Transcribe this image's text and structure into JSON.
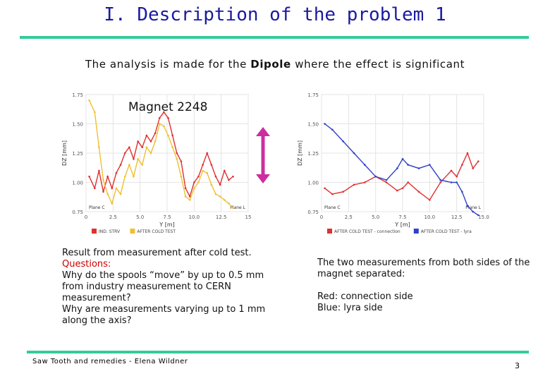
{
  "slide": {
    "title": "I. Description of the problem 1",
    "subtitle_before": "The analysis is made for the ",
    "subtitle_highlight": "Dipole",
    "subtitle_after": " where the effect is significant",
    "magnet_label": "Magnet 2248",
    "left_text": {
      "line1": "Result from measurement after cold test.",
      "line2": "Questions:",
      "line3": "Why do the spools “move” by up to 0.5 mm from industry measurement to CERN measurement?",
      "line4": "Why are measurements varying up to 1 mm along the axis?"
    },
    "right_text": {
      "para1": "The two measurements from both sides of the magnet separated:",
      "para2a": "Red: connection side",
      "para2b": "Blue: lyra side"
    },
    "footer": "Saw Tooth and remedies - Elena Wildner",
    "page_number": "3",
    "colors": {
      "title": "#1a1aa0",
      "rule": "#33cc99",
      "arrow": "#cc2ea0",
      "red_series": "#e03030",
      "yellow_series": "#f0c030",
      "blue_series": "#3040c8",
      "question": "#cc0000"
    }
  },
  "chart_data": [
    {
      "type": "line",
      "title": "",
      "xlabel": "Y [m]",
      "ylabel": "DZ [mm]",
      "xlim": [
        0,
        15
      ],
      "ylim": [
        0.75,
        1.75
      ],
      "x_ticks": [
        "0",
        "2.5",
        "5.0",
        "7.5",
        "10.0",
        "12.5",
        "15"
      ],
      "y_ticks": [
        "0.75",
        "1.00",
        "1.25",
        "1.50",
        "1.75"
      ],
      "corner_labels": [
        "Plane C",
        "Plane L"
      ],
      "legend_location": "bottom",
      "series": [
        {
          "name": "IND. STRV",
          "color": "#e03030",
          "x": [
            0.3,
            0.8,
            1.2,
            1.6,
            2.0,
            2.4,
            2.8,
            3.2,
            3.6,
            4.0,
            4.4,
            4.8,
            5.2,
            5.6,
            6.0,
            6.4,
            6.8,
            7.2,
            7.6,
            8.0,
            8.4,
            8.8,
            9.2,
            9.6,
            10.0,
            10.4,
            10.8,
            11.2,
            11.6,
            12.0,
            12.4,
            12.8,
            13.2,
            13.6
          ],
          "y": [
            1.05,
            0.95,
            1.1,
            0.92,
            1.05,
            0.95,
            1.08,
            1.15,
            1.25,
            1.3,
            1.2,
            1.35,
            1.3,
            1.4,
            1.35,
            1.42,
            1.55,
            1.6,
            1.55,
            1.4,
            1.25,
            1.18,
            0.95,
            0.88,
            1.0,
            1.05,
            1.15,
            1.25,
            1.15,
            1.05,
            0.98,
            1.1,
            1.02,
            1.05
          ]
        },
        {
          "name": "AFTER COLD TEST",
          "color": "#f0c030",
          "x": [
            0.3,
            0.8,
            1.2,
            1.6,
            2.0,
            2.4,
            2.8,
            3.2,
            3.6,
            4.0,
            4.4,
            4.8,
            5.2,
            5.6,
            6.0,
            6.4,
            6.8,
            7.2,
            7.6,
            8.0,
            8.4,
            8.8,
            9.2,
            9.6,
            10.0,
            10.4,
            10.8,
            11.2,
            11.6,
            12.0,
            12.4,
            12.8,
            13.2,
            13.6
          ],
          "y": [
            1.7,
            1.6,
            1.3,
            1.02,
            0.9,
            0.82,
            0.95,
            0.9,
            1.05,
            1.15,
            1.05,
            1.2,
            1.15,
            1.3,
            1.25,
            1.35,
            1.5,
            1.48,
            1.4,
            1.3,
            1.2,
            1.05,
            0.88,
            0.85,
            0.95,
            1.0,
            1.1,
            1.08,
            0.98,
            0.9,
            0.88,
            0.85,
            0.82,
            0.78
          ]
        }
      ]
    },
    {
      "type": "line",
      "title": "",
      "xlabel": "Y [m]",
      "ylabel": "DZ [mm]",
      "xlim": [
        0,
        15
      ],
      "ylim": [
        0.75,
        1.75
      ],
      "x_ticks": [
        "0",
        "2.5",
        "5.0",
        "7.5",
        "10.0",
        "12.5",
        "15.0"
      ],
      "y_ticks": [
        "0.75",
        "1.00",
        "1.25",
        "1.50",
        "1.75"
      ],
      "corner_labels": [
        "Plane C",
        "Plane L"
      ],
      "legend_location": "bottom",
      "series": [
        {
          "name": "AFTER COLD TEST - connection",
          "color": "#e03030",
          "x": [
            0.3,
            1.0,
            2.0,
            3.0,
            4.0,
            5.0,
            6.0,
            7.0,
            7.5,
            8.0,
            9.0,
            10.0,
            11.0,
            12.0,
            12.5,
            13.0,
            13.5,
            14.0,
            14.5
          ],
          "y": [
            0.95,
            0.9,
            0.92,
            0.98,
            1.0,
            1.05,
            1.0,
            0.93,
            0.95,
            1.0,
            0.92,
            0.85,
            1.0,
            1.1,
            1.05,
            1.15,
            1.25,
            1.12,
            1.18
          ]
        },
        {
          "name": "AFTER COLD TEST - lyra",
          "color": "#3040c8",
          "x": [
            0.3,
            1.0,
            2.0,
            3.0,
            4.0,
            5.0,
            6.0,
            7.0,
            7.5,
            8.0,
            9.0,
            10.0,
            11.0,
            12.0,
            12.5,
            13.0,
            13.5,
            14.0,
            14.5
          ],
          "y": [
            1.5,
            1.45,
            1.35,
            1.25,
            1.15,
            1.05,
            1.02,
            1.12,
            1.2,
            1.15,
            1.12,
            1.15,
            1.02,
            1.0,
            1.0,
            0.92,
            0.8,
            0.75,
            0.72
          ]
        }
      ]
    }
  ]
}
